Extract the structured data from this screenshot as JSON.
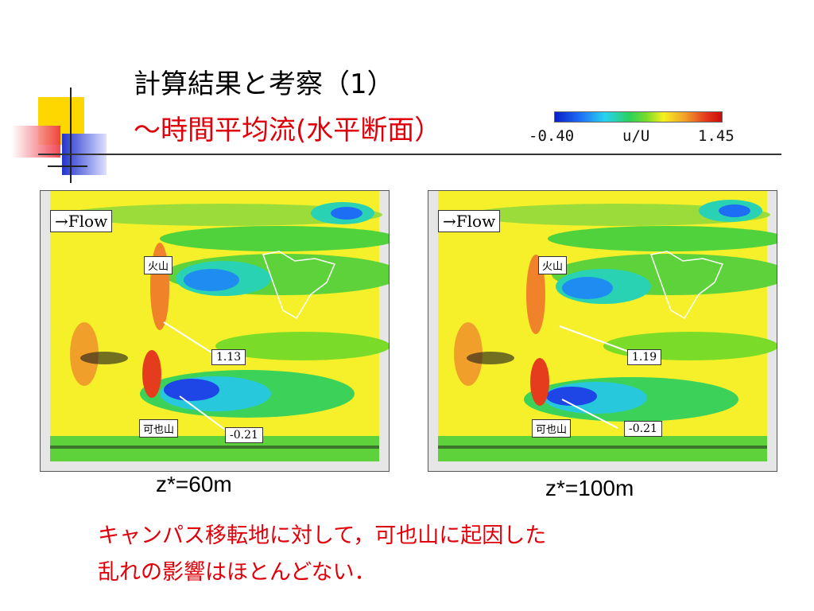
{
  "slide": {
    "title_line1": "計算結果と考察（1）",
    "title_line2": "〜時間平均流(水平断面）",
    "colorbar": {
      "min_label": "-0.40",
      "quantity_label": "u/U",
      "max_label": "1.45"
    },
    "panels": [
      {
        "flow_label": "→Flow",
        "label_kazan": "火山",
        "label_kayazan": "可也山",
        "value_max": "1.13",
        "value_min": "-0.21",
        "caption": "z*=60m"
      },
      {
        "flow_label": "→Flow",
        "label_kazan": "火山",
        "label_kayazan": "可也山",
        "value_max": "1.19",
        "value_min": "-0.21",
        "caption": "z*=100m"
      }
    ],
    "note_line1": "キャンパス移転地に対して，可也山に起因した",
    "note_line2": "乱れの影響はほとんどない．"
  },
  "colors": {
    "title_red": "#e0000a",
    "deco_yellow": "#ffd700",
    "deco_blue": "#2233cc",
    "deco_red": "#ee3344"
  }
}
